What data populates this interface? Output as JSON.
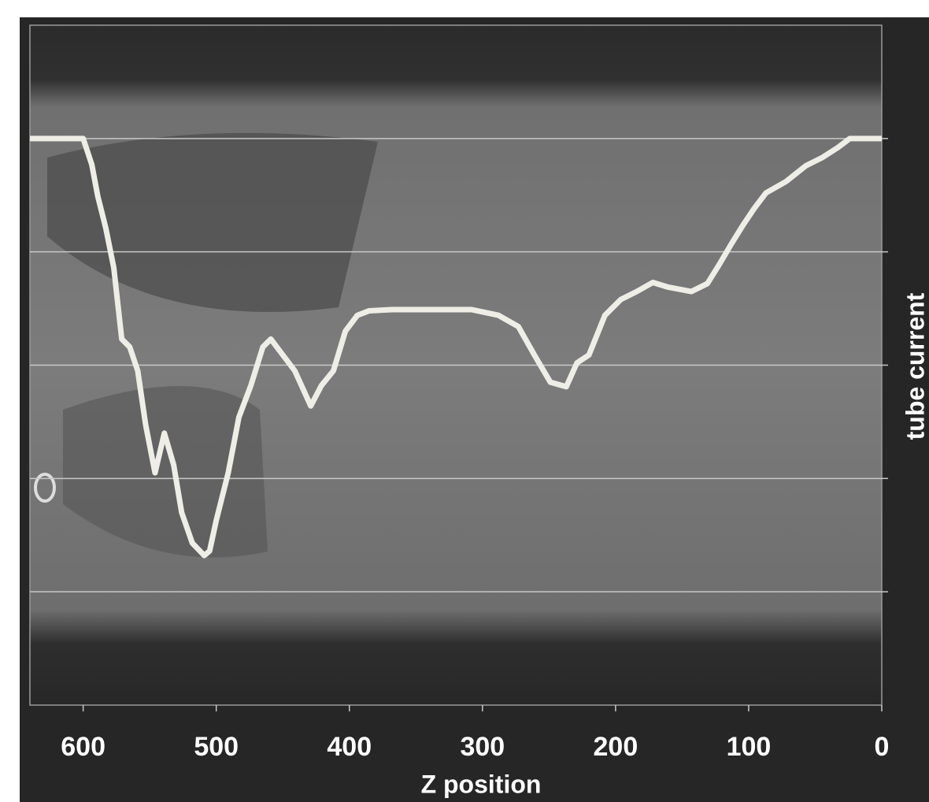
{
  "chart_data": {
    "type": "line",
    "x_label": "Z position",
    "y_label": "tube current",
    "x": [
      640,
      600,
      593.5,
      589,
      583,
      577,
      571,
      565,
      559,
      553,
      546,
      539,
      532,
      526,
      518,
      509,
      505,
      500,
      491,
      483,
      474,
      465,
      459,
      450,
      441,
      429,
      421,
      412,
      403,
      394,
      385,
      368,
      335,
      308,
      288,
      273,
      261,
      249,
      237,
      229,
      220,
      208,
      196,
      184,
      172,
      161,
      143,
      131,
      122,
      113,
      104,
      96,
      87,
      72,
      57,
      45,
      33,
      24,
      0
    ],
    "series": [
      {
        "color": "#eeeee6",
        "values": [
          5,
          5,
          4.77,
          4.49,
          4.21,
          3.86,
          3.23,
          3.16,
          2.95,
          2.47,
          2.05,
          2.4,
          2.12,
          1.7,
          1.43,
          1.32,
          1.36,
          1.63,
          2.05,
          2.54,
          2.82,
          3.16,
          3.23,
          3.09,
          2.95,
          2.64,
          2.82,
          2.95,
          3.3,
          3.44,
          3.48,
          3.49,
          3.49,
          3.49,
          3.44,
          3.34,
          3.09,
          2.85,
          2.81,
          3.02,
          3.09,
          3.44,
          3.58,
          3.65,
          3.73,
          3.69,
          3.65,
          3.72,
          3.89,
          4.07,
          4.24,
          4.38,
          4.52,
          4.62,
          4.76,
          4.83,
          4.92,
          5,
          5
        ]
      }
    ],
    "xlim": [
      640,
      0
    ],
    "xticks": [
      600,
      500,
      400,
      300,
      200,
      100,
      0
    ],
    "ylim": [
      0,
      6
    ],
    "yticks": [
      1,
      2,
      3,
      4,
      5
    ],
    "grid": true
  }
}
